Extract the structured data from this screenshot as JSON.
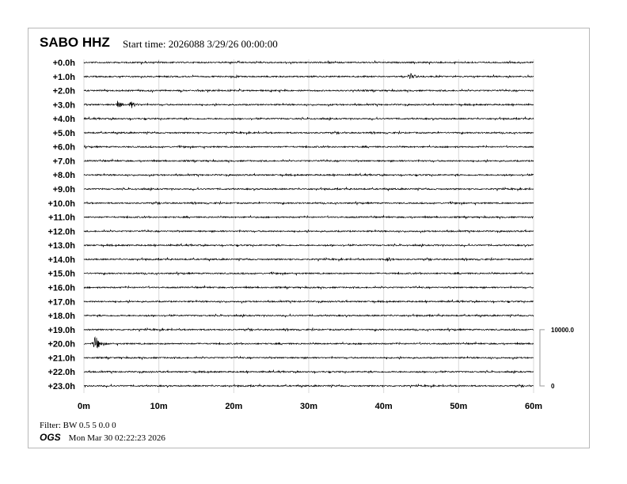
{
  "header": {
    "station": "SABO HHZ",
    "start_time": "Start time: 2026088  3/29/26 00:00:00"
  },
  "footer": {
    "filter": "Filter: BW 0.5 5 0.0 0",
    "org": "OGS",
    "generated": "Mon Mar 30 02:22:23 2026"
  },
  "chart_data": {
    "type": "line",
    "title": "SABO HHZ",
    "row_labels": [
      "+0.0h",
      "+1.0h",
      "+2.0h",
      "+3.0h",
      "+4.0h",
      "+5.0h",
      "+6.0h",
      "+7.0h",
      "+8.0h",
      "+9.0h",
      "+10.0h",
      "+11.0h",
      "+12.0h",
      "+13.0h",
      "+14.0h",
      "+15.0h",
      "+16.0h",
      "+17.0h",
      "+18.0h",
      "+19.0h",
      "+20.0h",
      "+21.0h",
      "+22.0h",
      "+23.0h"
    ],
    "x_tick_labels": [
      "0m",
      "10m",
      "20m",
      "30m",
      "40m",
      "50m",
      "60m"
    ],
    "xlim": [
      0,
      60
    ],
    "grid": "vertical every 10m",
    "scale_labels": {
      "top": "10000.0",
      "bottom": "0"
    },
    "trace_color": "#000000",
    "grid_color": "#d9d9d9",
    "events": [
      {
        "row": 1,
        "minute": 43.6,
        "amplitude": 0.3
      },
      {
        "row": 3,
        "minute": 4.5,
        "amplitude": 0.4
      },
      {
        "row": 3,
        "minute": 6.3,
        "amplitude": 0.35
      },
      {
        "row": 14,
        "minute": 40.5,
        "amplitude": 0.2
      },
      {
        "row": 20,
        "minute": 1.5,
        "amplitude": 0.9
      }
    ]
  }
}
